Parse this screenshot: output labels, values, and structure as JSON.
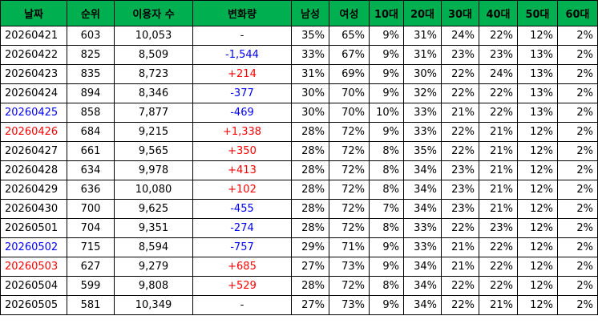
{
  "table": {
    "header": [
      "날짜",
      "순위",
      "이용자 수",
      "변화량",
      "남성",
      "여성",
      "10대",
      "20대",
      "30대",
      "40대",
      "50대",
      "60대"
    ],
    "header_color": "#00b050",
    "positive_color": "#ff0000",
    "negative_color": "#0000ff",
    "date_colors": [
      "#000000",
      "#000000",
      "#000000",
      "#000000",
      "#0000ff",
      "#ff0000",
      "#000000",
      "#000000",
      "#000000",
      "#000000",
      "#000000",
      "#0000ff",
      "#ff0000",
      "#000000",
      "#000000"
    ],
    "rows": [
      [
        "20260421",
        "603",
        "10,053",
        "-",
        "35%",
        "65%",
        "9%",
        "31%",
        "24%",
        "22%",
        "12%",
        "2%"
      ],
      [
        "20260422",
        "825",
        "8,509",
        "-1,544",
        "33%",
        "67%",
        "9%",
        "31%",
        "23%",
        "23%",
        "13%",
        "2%"
      ],
      [
        "20260423",
        "835",
        "8,723",
        "+214",
        "31%",
        "69%",
        "9%",
        "30%",
        "22%",
        "24%",
        "13%",
        "2%"
      ],
      [
        "20260424",
        "894",
        "8,346",
        "-377",
        "30%",
        "70%",
        "9%",
        "32%",
        "22%",
        "22%",
        "13%",
        "2%"
      ],
      [
        "20260425",
        "858",
        "7,877",
        "-469",
        "30%",
        "70%",
        "10%",
        "33%",
        "21%",
        "22%",
        "13%",
        "2%"
      ],
      [
        "20260426",
        "684",
        "9,215",
        "+1,338",
        "28%",
        "72%",
        "9%",
        "33%",
        "22%",
        "21%",
        "12%",
        "2%"
      ],
      [
        "20260427",
        "661",
        "9,565",
        "+350",
        "28%",
        "72%",
        "8%",
        "35%",
        "22%",
        "21%",
        "12%",
        "2%"
      ],
      [
        "20260428",
        "634",
        "9,978",
        "+413",
        "28%",
        "72%",
        "8%",
        "34%",
        "23%",
        "21%",
        "12%",
        "2%"
      ],
      [
        "20260429",
        "636",
        "10,080",
        "+102",
        "28%",
        "72%",
        "8%",
        "34%",
        "23%",
        "21%",
        "12%",
        "2%"
      ],
      [
        "20260430",
        "700",
        "9,625",
        "-455",
        "28%",
        "72%",
        "7%",
        "34%",
        "23%",
        "21%",
        "12%",
        "2%"
      ],
      [
        "20260501",
        "704",
        "9,351",
        "-274",
        "28%",
        "72%",
        "8%",
        "33%",
        "22%",
        "23%",
        "12%",
        "2%"
      ],
      [
        "20260502",
        "715",
        "8,594",
        "-757",
        "29%",
        "71%",
        "9%",
        "33%",
        "21%",
        "22%",
        "12%",
        "2%"
      ],
      [
        "20260503",
        "627",
        "9,279",
        "+685",
        "27%",
        "73%",
        "9%",
        "34%",
        "21%",
        "22%",
        "12%",
        "2%"
      ],
      [
        "20260504",
        "599",
        "9,808",
        "+529",
        "28%",
        "72%",
        "8%",
        "34%",
        "22%",
        "22%",
        "12%",
        "2%"
      ],
      [
        "20260505",
        "581",
        "10,349",
        "-",
        "27%",
        "73%",
        "9%",
        "34%",
        "22%",
        "21%",
        "12%",
        "2%"
      ]
    ]
  }
}
